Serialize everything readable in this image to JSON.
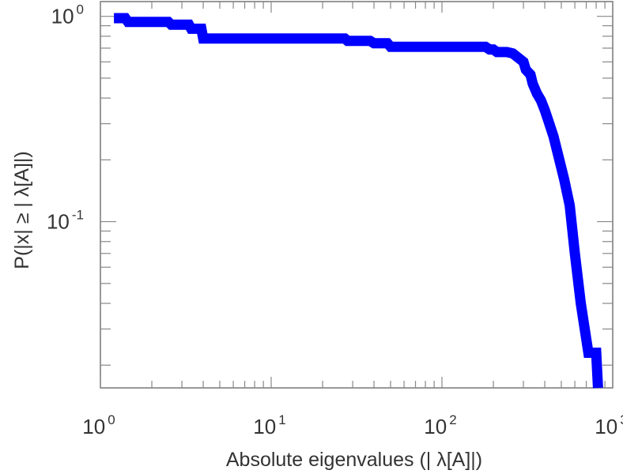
{
  "chart_data": {
    "type": "line",
    "title": "",
    "xlabel": "Absolute eigenvalues (|      λ[A]|)",
    "ylabel": "P(|x|  ≥ | λ[A]|)",
    "xscale": "log",
    "yscale": "log",
    "xlim": [
      1,
      1000
    ],
    "ylim": [
      0.0155,
      1.18
    ],
    "grid": false,
    "legend": "none",
    "x_ticks": [
      {
        "base": "10",
        "exp": "0",
        "value": 1
      },
      {
        "base": "10",
        "exp": "1",
        "value": 10
      },
      {
        "base": "10",
        "exp": "2",
        "value": 100
      },
      {
        "base": "10",
        "exp": "3",
        "value": 1000
      }
    ],
    "y_ticks": [
      {
        "base": "10",
        "exp": "0",
        "value": 1
      },
      {
        "base": "10",
        "exp": "-1",
        "value": 0.1
      }
    ],
    "series": [
      {
        "color": "#0000ff",
        "x": [
          1.2,
          1.4,
          1.45,
          2.5,
          2.6,
          3.3,
          3.4,
          3.9,
          4.0,
          27,
          28,
          38,
          40,
          48,
          50,
          180,
          190,
          200,
          210,
          240,
          260,
          300,
          310,
          330,
          340,
          360,
          380,
          400,
          420,
          450,
          480,
          520,
          560,
          600,
          650,
          720,
          800,
          820
        ],
        "y": [
          0.98,
          0.98,
          0.94,
          0.94,
          0.91,
          0.91,
          0.87,
          0.87,
          0.78,
          0.78,
          0.76,
          0.76,
          0.74,
          0.74,
          0.71,
          0.71,
          0.69,
          0.69,
          0.67,
          0.67,
          0.66,
          0.6,
          0.55,
          0.52,
          0.47,
          0.42,
          0.39,
          0.35,
          0.31,
          0.26,
          0.21,
          0.16,
          0.12,
          0.07,
          0.04,
          0.023,
          0.023,
          0.0155
        ]
      }
    ]
  }
}
